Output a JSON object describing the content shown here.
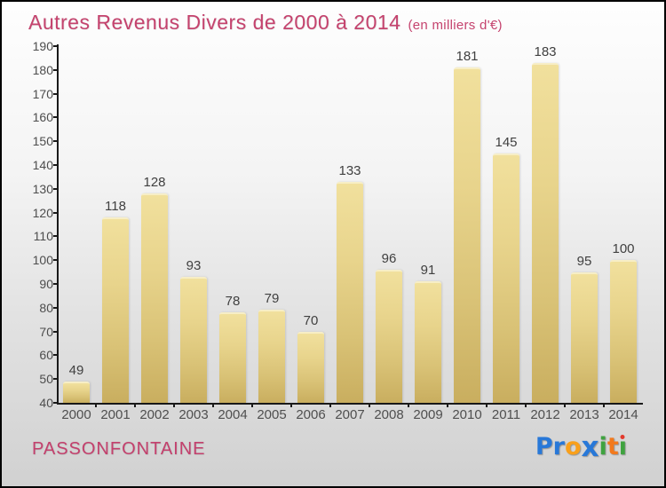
{
  "title": {
    "text": "Autres Revenus Divers de 2000 à 2014",
    "subtitle": "(en milliers d'€)"
  },
  "chart_data": {
    "type": "bar",
    "title": "Autres Revenus Divers de 2000 à 2014",
    "subtitle": "(en milliers d'€)",
    "categories": [
      "2000",
      "2001",
      "2002",
      "2003",
      "2004",
      "2005",
      "2006",
      "2007",
      "2008",
      "2009",
      "2010",
      "2011",
      "2012",
      "2013",
      "2014"
    ],
    "values": [
      49,
      118,
      128,
      93,
      78,
      79,
      70,
      133,
      96,
      91,
      181,
      145,
      183,
      95,
      100
    ],
    "xlabel": "",
    "ylabel": "",
    "ylim": [
      40,
      190
    ],
    "ytick_step": 10,
    "grid": false,
    "legend": false,
    "bar_color_top": "#f1e09d",
    "bar_color_bottom": "#c9ae5f",
    "axis_color": "#1a1a1a",
    "value_label_color": "#404040",
    "tick_label_color": "#4d4d4d"
  },
  "footer": {
    "location": "PASSONFONTAINE",
    "logo_letters": [
      {
        "ch": "P",
        "color": "#2878d8"
      },
      {
        "ch": "r",
        "color": "#2878d8"
      },
      {
        "ch": "o",
        "color": "#f9a01b"
      },
      {
        "ch": "x",
        "color": "#2878d8",
        "big": true
      },
      {
        "ch": "i",
        "color": "#3fa33f"
      },
      {
        "ch": "t",
        "color": "#f2791d"
      },
      {
        "ch": "i",
        "color": "#3fa33f",
        "dot_color": "#e23b2e"
      }
    ]
  },
  "colors": {
    "title_pink": "#c5436e",
    "background_top": "#fefefe",
    "background_bottom": "#d1d1d1"
  }
}
